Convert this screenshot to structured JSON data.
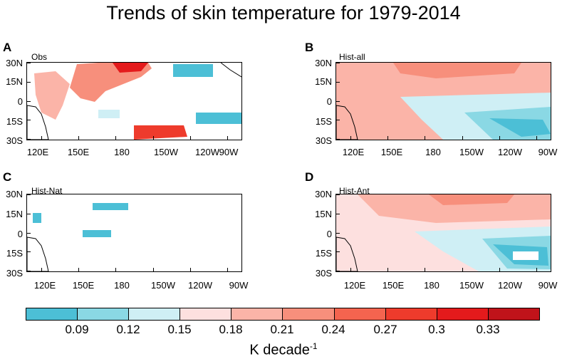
{
  "title": "Trends of skin temperature for 1979-2014",
  "panels": [
    {
      "letter": "A",
      "label": "Obs"
    },
    {
      "letter": "B",
      "label": "Hist-all"
    },
    {
      "letter": "C",
      "label": "Hist-Nat"
    },
    {
      "letter": "D",
      "label": "Hist-Ant"
    }
  ],
  "lat_labels": [
    "30N",
    "15N",
    "0",
    "15S",
    "30S"
  ],
  "lon_labels": [
    "120E",
    "150E",
    "180",
    "150W",
    "120W",
    "90W"
  ],
  "colorbar": {
    "labels": [
      "0.09",
      "0.12",
      "0.15",
      "0.18",
      "0.21",
      "0.24",
      "0.27",
      "0.3",
      "0.33"
    ],
    "colors": [
      "#4cbfd6",
      "#8ad8e4",
      "#cfeff5",
      "#fde0df",
      "#fbb4a8",
      "#f78f7c",
      "#f4644f",
      "#ee3b2c",
      "#e41a1c",
      "#c0131a"
    ],
    "title": "K decade",
    "title_exponent": "-1"
  },
  "chart_data": {
    "type": "heatmap",
    "title": "Trends of skin temperature for 1979-2014",
    "units": "K decade-1",
    "x_range": [
      "110E",
      "90W"
    ],
    "y_range": [
      "30S",
      "30N"
    ],
    "levels": [
      0.09,
      0.12,
      0.15,
      0.18,
      0.21,
      0.24,
      0.27,
      0.3,
      0.33
    ],
    "panels": [
      "Obs",
      "Hist-all",
      "Hist-Nat",
      "Hist-Ant"
    ]
  }
}
